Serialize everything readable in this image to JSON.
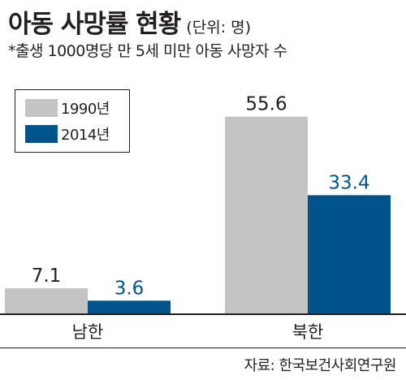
{
  "title": "아동 사망률 현황",
  "unit_note": "(단위: 명)",
  "subtitle": "*출생 1000명당 만 5세 미만 아동 사망자 수",
  "source": "자료: 한국보건사회연구원",
  "colors": {
    "series_1990": "#c4c4c4",
    "series_2014": "#00548c",
    "label_1990": "#231f20",
    "label_2014": "#00548c"
  },
  "chart_data": {
    "type": "bar",
    "title": "아동 사망률 현황",
    "unit": "(단위: 명)",
    "categories": [
      "남한",
      "북한"
    ],
    "series": [
      {
        "name": "1990년",
        "values": [
          7.1,
          55.6
        ]
      },
      {
        "name": "2014년",
        "values": [
          3.6,
          33.4
        ]
      }
    ],
    "legend_position": "top-left",
    "grid": false
  }
}
